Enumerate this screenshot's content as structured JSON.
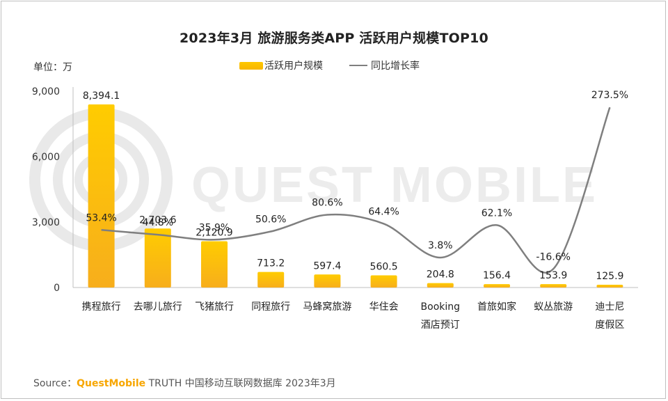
{
  "title": "2023年3月 旅游服务类APP 活跃用户规模TOP10",
  "unit_label": "单位：万",
  "legend": {
    "bar": "活跃用户规模",
    "line": "同比增长率"
  },
  "watermark": "QUEST MOBILE",
  "source": {
    "prefix": "Source：",
    "brand": "QuestMobile",
    "rest": "TRUTH 中国移动互联网数据库 2023年3月"
  },
  "colors": {
    "bar_top": "#ffcc00",
    "bar_bottom": "#f7ae1c",
    "line": "#7f7f7f"
  },
  "chart_data": {
    "type": "bar",
    "title": "2023年3月 旅游服务类APP 活跃用户规模TOP10",
    "categories": [
      "携程旅行",
      "去哪儿旅行",
      "飞猪旅行",
      "同程旅行",
      "马蜂窝旅游",
      "华住会",
      "Booking\n酒店预订",
      "首旅如家",
      "蚁丛旅游",
      "迪士尼\n度假区"
    ],
    "series": [
      {
        "name": "活跃用户规模",
        "type": "bar",
        "values": [
          8394.1,
          2703.6,
          2120.9,
          713.2,
          597.4,
          560.5,
          204.8,
          156.4,
          153.9,
          125.9
        ],
        "labels": [
          "8,394.1",
          "2,703.6",
          "2,120.9",
          "713.2",
          "597.4",
          "560.5",
          "204.8",
          "156.4",
          "153.9",
          "125.9"
        ]
      },
      {
        "name": "同比增长率",
        "type": "line",
        "values": [
          53.4,
          44.8,
          35.9,
          50.6,
          80.6,
          64.4,
          3.8,
          62.1,
          -16.6,
          273.5
        ],
        "labels": [
          "53.4%",
          "44.8%",
          "35.9%",
          "50.6%",
          "80.6%",
          "64.4%",
          "3.8%",
          "62.1%",
          "-16.6%",
          "273.5%"
        ]
      }
    ],
    "yticks": [
      "0",
      "3,000",
      "6,000",
      "9,000"
    ],
    "ylim": [
      0,
      9000
    ],
    "ylabel": "单位：万",
    "legend": "top-center"
  }
}
